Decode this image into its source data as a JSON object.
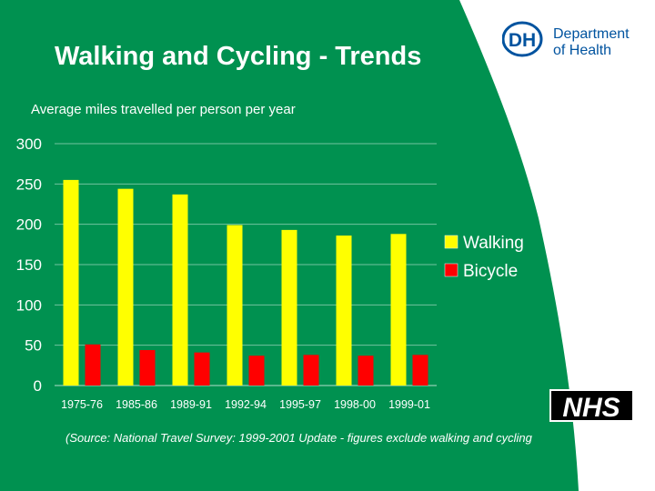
{
  "slide": {
    "title": "Walking and Cycling - Trends",
    "subtitle": "Average miles travelled per person per year",
    "source": "(Source: National Travel Survey: 1999-2001 Update - figures  exclude walking and cycling",
    "colors": {
      "background": "#009150",
      "walking": "#ffff00",
      "bicycle": "#ff0000"
    }
  },
  "logos": {
    "dh": {
      "mark": "DH",
      "line1": "Department",
      "line2": "of Health"
    },
    "nhs": {
      "text": "NHS"
    }
  },
  "chart_data": {
    "type": "bar",
    "categories": [
      "1975-76",
      "1985-86",
      "1989-91",
      "1992-94",
      "1995-97",
      "1998-00",
      "1999-01"
    ],
    "series": [
      {
        "name": "Walking",
        "values": [
          255,
          244,
          237,
          199,
          193,
          186,
          188
        ]
      },
      {
        "name": "Bicycle",
        "values": [
          51,
          44,
          41,
          37,
          38,
          37,
          38
        ]
      }
    ],
    "ylim": [
      0,
      300
    ],
    "yticks": [
      0,
      50,
      100,
      150,
      200,
      250,
      300
    ],
    "grid": true,
    "legend": "right"
  }
}
